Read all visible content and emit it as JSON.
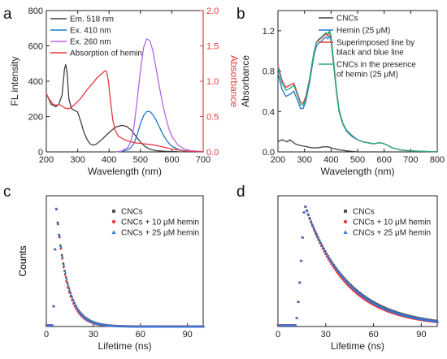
{
  "chart_data": [
    {
      "panel": "a",
      "type": "line",
      "xlabel": "Wavelength (nm)",
      "ylabel": "FL intensity",
      "ylabel_right": "Absorbance",
      "xlim": [
        200,
        700
      ],
      "ylim": [
        0,
        800
      ],
      "ylim_right": [
        0,
        2.0
      ],
      "xticks": [
        "200",
        "300",
        "400",
        "500",
        "600",
        "700"
      ],
      "yticks": [
        "0",
        "200",
        "400",
        "600",
        "800"
      ],
      "yticks_right": [
        "0.0",
        "0.5",
        "1.0",
        "1.5",
        "2.0"
      ],
      "legend_position": "top-left",
      "series": [
        {
          "name": "Em. 518 nm",
          "color": "#404040",
          "axis": "left",
          "points": [
            [
              200,
              330
            ],
            [
              215,
              270
            ],
            [
              230,
              255
            ],
            [
              240,
              270
            ],
            [
              250,
              320
            ],
            [
              258,
              470
            ],
            [
              262,
              495
            ],
            [
              266,
              450
            ],
            [
              272,
              300
            ],
            [
              280,
              245
            ],
            [
              290,
              235
            ],
            [
              300,
              225
            ],
            [
              310,
              170
            ],
            [
              320,
              110
            ],
            [
              330,
              70
            ],
            [
              340,
              45
            ],
            [
              350,
              38
            ],
            [
              360,
              45
            ],
            [
              380,
              75
            ],
            [
              400,
              110
            ],
            [
              420,
              140
            ],
            [
              440,
              150
            ],
            [
              455,
              145
            ],
            [
              470,
              125
            ],
            [
              485,
              90
            ],
            [
              500,
              55
            ],
            [
              515,
              30
            ],
            [
              530,
              15
            ],
            [
              550,
              7
            ],
            [
              580,
              3
            ],
            [
              620,
              1
            ],
            [
              700,
              0
            ]
          ]
        },
        {
          "name": "Ex. 410 nm",
          "color": "#1f77c9",
          "axis": "left",
          "points": [
            [
              420,
              0
            ],
            [
              440,
              3
            ],
            [
              460,
              12
            ],
            [
              470,
              25
            ],
            [
              480,
              50
            ],
            [
              490,
              100
            ],
            [
              500,
              160
            ],
            [
              510,
              205
            ],
            [
              520,
              228
            ],
            [
              530,
              228
            ],
            [
              540,
              210
            ],
            [
              550,
              180
            ],
            [
              560,
              142
            ],
            [
              570,
              105
            ],
            [
              580,
              75
            ],
            [
              590,
              50
            ],
            [
              600,
              32
            ],
            [
              620,
              14
            ],
            [
              640,
              6
            ],
            [
              660,
              3
            ],
            [
              700,
              1
            ]
          ]
        },
        {
          "name": "Ex. 260 nm",
          "color": "#b266e6",
          "axis": "left",
          "points": [
            [
              420,
              0
            ],
            [
              440,
              4
            ],
            [
              460,
              25
            ],
            [
              470,
              60
            ],
            [
              480,
              150
            ],
            [
              490,
              300
            ],
            [
              500,
              460
            ],
            [
              510,
              590
            ],
            [
              520,
              640
            ],
            [
              530,
              630
            ],
            [
              540,
              570
            ],
            [
              550,
              470
            ],
            [
              560,
              370
            ],
            [
              570,
              280
            ],
            [
              580,
              200
            ],
            [
              590,
              135
            ],
            [
              600,
              88
            ],
            [
              620,
              38
            ],
            [
              640,
              16
            ],
            [
              660,
              7
            ],
            [
              700,
              2
            ]
          ]
        },
        {
          "name": "Absorption of hemin",
          "color": "#e8383d",
          "axis": "right",
          "points": [
            [
              200,
              0.82
            ],
            [
              210,
              0.74
            ],
            [
              220,
              0.68
            ],
            [
              230,
              0.66
            ],
            [
              240,
              0.67
            ],
            [
              250,
              0.65
            ],
            [
              260,
              0.62
            ],
            [
              270,
              0.61
            ],
            [
              280,
              0.63
            ],
            [
              290,
              0.67
            ],
            [
              300,
              0.71
            ],
            [
              310,
              0.76
            ],
            [
              320,
              0.82
            ],
            [
              330,
              0.88
            ],
            [
              340,
              0.93
            ],
            [
              350,
              0.98
            ],
            [
              360,
              1.04
            ],
            [
              370,
              1.08
            ],
            [
              380,
              1.12
            ],
            [
              387,
              1.15
            ],
            [
              392,
              1.14
            ],
            [
              398,
              1.0
            ],
            [
              405,
              0.7
            ],
            [
              412,
              0.45
            ],
            [
              420,
              0.3
            ],
            [
              430,
              0.22
            ],
            [
              450,
              0.17
            ],
            [
              480,
              0.13
            ],
            [
              500,
              0.12
            ],
            [
              520,
              0.11
            ],
            [
              540,
              0.1
            ],
            [
              560,
              0.08
            ],
            [
              580,
              0.06
            ],
            [
              600,
              0.04
            ],
            [
              650,
              0.01
            ],
            [
              700,
              0.0
            ]
          ]
        }
      ]
    },
    {
      "panel": "b",
      "type": "line",
      "xlabel": "Wavelength (nm)",
      "ylabel": "Absorbance",
      "xlim": [
        200,
        800
      ],
      "ylim": [
        0,
        1.4
      ],
      "xticks": [
        "200",
        "300",
        "400",
        "500",
        "600",
        "700",
        "800"
      ],
      "yticks": [
        "0.0",
        "0.4",
        "0.8",
        "1.2"
      ],
      "legend_position": "top-right",
      "series": [
        {
          "name": "CNCs",
          "color": "#404040",
          "points": [
            [
              200,
              0.1
            ],
            [
              215,
              0.12
            ],
            [
              225,
              0.11
            ],
            [
              235,
              0.1
            ],
            [
              245,
              0.12
            ],
            [
              255,
              0.1
            ],
            [
              265,
              0.08
            ],
            [
              275,
              0.07
            ],
            [
              290,
              0.06
            ],
            [
              310,
              0.05
            ],
            [
              330,
              0.04
            ],
            [
              350,
              0.04
            ],
            [
              370,
              0.05
            ],
            [
              390,
              0.05
            ],
            [
              400,
              0.04
            ],
            [
              430,
              0.02
            ],
            [
              460,
              0.01
            ],
            [
              500,
              0.0
            ],
            [
              800,
              0.0
            ]
          ]
        },
        {
          "name": "Hemin (25 μM)",
          "color": "#1f77c9",
          "points": [
            [
              200,
              0.78
            ],
            [
              215,
              0.62
            ],
            [
              230,
              0.55
            ],
            [
              245,
              0.57
            ],
            [
              260,
              0.6
            ],
            [
              275,
              0.5
            ],
            [
              285,
              0.43
            ],
            [
              295,
              0.43
            ],
            [
              305,
              0.5
            ],
            [
              320,
              0.7
            ],
            [
              335,
              0.95
            ],
            [
              345,
              1.05
            ],
            [
              355,
              1.08
            ],
            [
              365,
              1.1
            ],
            [
              372,
              1.12
            ],
            [
              380,
              1.14
            ],
            [
              388,
              1.12
            ],
            [
              395,
              1.15
            ],
            [
              400,
              1.1
            ],
            [
              410,
              0.85
            ],
            [
              420,
              0.6
            ],
            [
              430,
              0.4
            ],
            [
              445,
              0.27
            ],
            [
              460,
              0.2
            ],
            [
              480,
              0.15
            ],
            [
              500,
              0.12
            ],
            [
              520,
              0.1
            ],
            [
              540,
              0.09
            ],
            [
              560,
              0.08
            ],
            [
              580,
              0.09
            ],
            [
              595,
              0.085
            ],
            [
              610,
              0.07
            ],
            [
              630,
              0.04
            ],
            [
              660,
              0.02
            ],
            [
              700,
              0.01
            ],
            [
              800,
              0.0
            ]
          ]
        },
        {
          "name": "Superimposed line by black and blue line",
          "color": "#e8383d",
          "points": [
            [
              200,
              0.86
            ],
            [
              215,
              0.71
            ],
            [
              230,
              0.64
            ],
            [
              245,
              0.66
            ],
            [
              260,
              0.68
            ],
            [
              275,
              0.57
            ],
            [
              285,
              0.49
            ],
            [
              295,
              0.48
            ],
            [
              305,
              0.55
            ],
            [
              320,
              0.74
            ],
            [
              335,
              0.98
            ],
            [
              345,
              1.08
            ],
            [
              355,
              1.11
            ],
            [
              365,
              1.13
            ],
            [
              372,
              1.15
            ],
            [
              380,
              1.17
            ],
            [
              388,
              1.15
            ],
            [
              395,
              1.19
            ],
            [
              400,
              1.14
            ],
            [
              410,
              0.88
            ],
            [
              420,
              0.62
            ],
            [
              430,
              0.42
            ],
            [
              445,
              0.28
            ],
            [
              460,
              0.21
            ],
            [
              480,
              0.16
            ],
            [
              500,
              0.12
            ],
            [
              520,
              0.1
            ],
            [
              540,
              0.09
            ],
            [
              560,
              0.08
            ],
            [
              580,
              0.09
            ],
            [
              595,
              0.085
            ],
            [
              610,
              0.07
            ],
            [
              630,
              0.04
            ],
            [
              660,
              0.02
            ],
            [
              700,
              0.01
            ],
            [
              800,
              0.0
            ]
          ]
        },
        {
          "name": "CNCs in the presence of hemin (25 μM)",
          "color": "#1fae7a",
          "points": [
            [
              200,
              0.84
            ],
            [
              215,
              0.68
            ],
            [
              230,
              0.61
            ],
            [
              245,
              0.63
            ],
            [
              260,
              0.66
            ],
            [
              275,
              0.55
            ],
            [
              285,
              0.47
            ],
            [
              295,
              0.46
            ],
            [
              305,
              0.53
            ],
            [
              320,
              0.73
            ],
            [
              335,
              0.98
            ],
            [
              345,
              1.09
            ],
            [
              355,
              1.12
            ],
            [
              365,
              1.14
            ],
            [
              372,
              1.16
            ],
            [
              380,
              1.18
            ],
            [
              388,
              1.17
            ],
            [
              395,
              1.2
            ],
            [
              400,
              1.15
            ],
            [
              410,
              0.89
            ],
            [
              420,
              0.63
            ],
            [
              430,
              0.42
            ],
            [
              445,
              0.28
            ],
            [
              460,
              0.21
            ],
            [
              480,
              0.16
            ],
            [
              500,
              0.12
            ],
            [
              520,
              0.1
            ],
            [
              540,
              0.09
            ],
            [
              560,
              0.08
            ],
            [
              580,
              0.09
            ],
            [
              595,
              0.085
            ],
            [
              610,
              0.07
            ],
            [
              630,
              0.04
            ],
            [
              660,
              0.02
            ],
            [
              700,
              0.01
            ],
            [
              800,
              0.0
            ]
          ]
        }
      ]
    },
    {
      "panel": "c",
      "type": "scatter",
      "xlabel": "Lifetime (ns)",
      "ylabel": "Counts",
      "xlim": [
        0,
        100
      ],
      "ylim": [
        0,
        1.05
      ],
      "xticks": [
        "0",
        "30",
        "60",
        "90"
      ],
      "legend_position": "top-right",
      "series": [
        {
          "name": "CNCs",
          "color": "#555555",
          "marker": "square",
          "onset": 4.0,
          "peak": 6.0,
          "tau": 7.2
        },
        {
          "name": "CNCs + 10 μM hemin",
          "color": "#e8383d",
          "marker": "circle",
          "onset": 4.0,
          "peak": 6.0,
          "tau": 6.6
        },
        {
          "name": "CNCs + 25 μM hemin",
          "color": "#2c7be5",
          "marker": "triangle",
          "onset": 4.0,
          "peak": 6.0,
          "tau": 6.9
        }
      ]
    },
    {
      "panel": "d",
      "type": "scatter",
      "xlabel": "Lifetime (ns)",
      "ylabel": "Counts",
      "xlim": [
        0,
        100
      ],
      "ylim": [
        0,
        1.05
      ],
      "xticks": [
        "0",
        "30",
        "60",
        "90"
      ],
      "legend_position": "top-right",
      "series": [
        {
          "name": "CNCs",
          "color": "#555555",
          "marker": "square",
          "onset": 11.0,
          "peak": 16.5,
          "tau": 27.0
        },
        {
          "name": "CNCs + 10 μM hemin",
          "color": "#e8383d",
          "marker": "circle",
          "onset": 11.0,
          "peak": 16.5,
          "tau": 25.0
        },
        {
          "name": "CNCs + 25 μM hemin",
          "color": "#2c7be5",
          "marker": "triangle",
          "onset": 11.0,
          "peak": 16.5,
          "tau": 26.0
        }
      ]
    }
  ]
}
